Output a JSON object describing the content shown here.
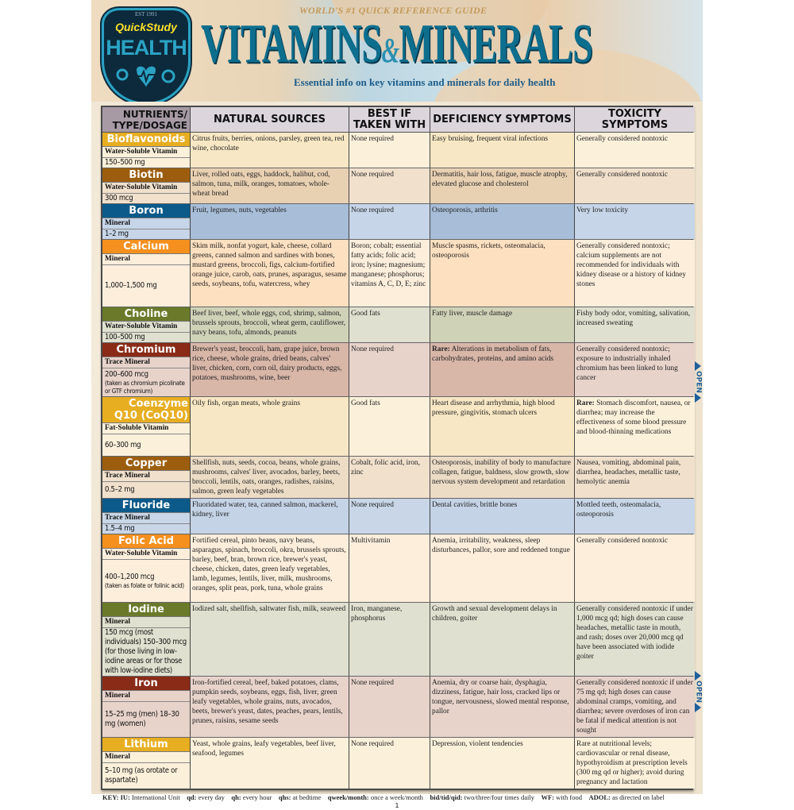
{
  "header": {
    "tagline": "WORLD'S #1 QUICK REFERENCE GUIDE",
    "title_part1": "VITAMINS",
    "title_amp": "&",
    "title_part2": "MINERALS",
    "subtitle": "Essential info on key vitamins and minerals for daily health",
    "logo": {
      "est": "EST 1991",
      "brand": "QuickStudy",
      "category": "HEALTH"
    }
  },
  "table": {
    "columns": [
      "NUTRIENTS/ TYPE/DOSAGE",
      "NATURAL SOURCES",
      "BEST IF TAKEN WITH",
      "DEFICIENCY SYMPTOMS",
      "TOXICITY SYMPTOMS"
    ],
    "rows": [
      {
        "name": "Bioflavonoids",
        "type": "Water-Soluble Vitamin",
        "dosage": "150–500 mg",
        "color": "#e7ae22",
        "tint": "#fbf0da",
        "tint2": "#f8e7c4",
        "sources": "Citrus fruits, berries, onions, parsley, green tea, red wine, chocolate",
        "best": "None required",
        "deficiency": "Easy bruising, frequent viral infections",
        "toxicity": "Generally considered nontoxic"
      },
      {
        "name": "Biotin",
        "type": "Water-Soluble Vitamin",
        "dosage": "300 mcg",
        "color": "#9c5e0e",
        "tint": "#f0e0cc",
        "tint2": "#e8d0b2",
        "sources": "Liver, rolled oats, eggs, haddock, halibut, cod, salmon, tuna, milk, oranges, tomatoes, whole-wheat bread",
        "best": "None required",
        "deficiency": "Dermatitis, hair loss, fatigue, muscle atrophy, elevated glucose and cholesterol",
        "toxicity": "Generally considered nontoxic"
      },
      {
        "name": "Boron",
        "type": "Mineral",
        "dosage": "1–2 mg",
        "color": "#0b5a8a",
        "tint": "#c6d5e8",
        "tint2": "#a7bdd8",
        "sources": "Fruit, legumes, nuts, vegetables",
        "best": "None required",
        "deficiency": "Osteoporosis, arthritis",
        "toxicity": "Very low toxicity"
      },
      {
        "name": "Calcium",
        "type": "Mineral",
        "dosage": "1,000–1,500 mg",
        "color": "#f5901e",
        "tint": "#fdeedc",
        "tint2": "#fde0c0",
        "sources": "Skim milk, nonfat yogurt, kale, cheese, collard greens, canned salmon and sardines with bones, mustard greens, broccoli, figs, calcium-fortified orange juice, carob, oats, prunes, asparagus, sesame seeds, soybeans, tofu, watercress, whey",
        "best": "Boron; cobalt; essential fatty acids; folic acid; iron; lysine; magnesium; manganese; phosphorus; vitamins A, C, D, E; zinc",
        "deficiency": "Muscle spasms, rickets, osteomalacia, osteoporosis",
        "toxicity": "Generally considered nontoxic; calcium supplements are not recommended for individuals with kidney disease or a history of kidney stones"
      },
      {
        "name": "Choline",
        "type": "Water-Soluble Vitamin",
        "dosage": "100–500 mg",
        "color": "#6a7a2a",
        "tint": "#dfe0cf",
        "tint2": "#d0d2b8",
        "sources": "Beef liver, beef, whole eggs, cod, shrimp, salmon, brussels sprouts, broccoli, wheat germ, cauliflower, navy beans, tofu, almonds, peanuts",
        "best": "Good fats",
        "deficiency": "Fatty liver, muscle damage",
        "toxicity": "Fishy body odor, vomiting, salivation, increased sweating"
      },
      {
        "name": "Chromium",
        "type": "Trace Mineral",
        "dosage": "200–600 mcg",
        "dosage_note": "(taken as chromium picolinate or GTF chromium)",
        "color": "#8a2b18",
        "tint": "#e8d3cb",
        "tint2": "#d8b6a8",
        "sources": "Brewer's yeast, broccoli, ham, grape juice, brown rice, cheese, whole grains, dried beans, calves' liver, chicken, corn, corn oil, dairy products, eggs, potatoes, mushrooms, wine, beer",
        "best": "None required",
        "deficiency_prefix": "Rare:",
        "deficiency": "Alterations in metabolism of fats, carbohydrates, proteins, and amino acids",
        "toxicity": "Generally considered nontoxic; exposure to industrially inhaled chromium has been linked to lung cancer"
      },
      {
        "name": "Coenzyme Q10 (CoQ10)",
        "type": "Fat-Soluble Vitamin",
        "dosage": "60–300 mg",
        "color": "#e7ae22",
        "tint": "#fbf0da",
        "tint2": "#f8e7c4",
        "sources": "Oily fish, organ meats, whole grains",
        "best": "Good fats",
        "deficiency": "Heart disease and arrhythmia, high blood pressure, gingivitis, stomach ulcers",
        "toxicity_prefix": "Rare:",
        "toxicity": "Stomach discomfort, nausea, or diarrhea; may increase the effectiveness of some blood pressure and blood-thinning medications"
      },
      {
        "name": "Copper",
        "type": "Trace Mineral",
        "dosage": "0.5–2 mg",
        "color": "#9c5e0e",
        "tint": "#f0e0cc",
        "tint2": "#ecdcc6",
        "sources": "Shellfish, nuts, seeds, cocoa, beans, whole grains, mushrooms, calves' liver, avocados, barley, beets, broccoli, lentils, oats, oranges, radishes, raisins, salmon, green leafy vegetables",
        "best": "Cobalt, folic acid, iron, zinc",
        "deficiency": "Osteoporosis, inability of body to manufacture collagen, fatigue, baldness, slow growth, slow nervous system development and retardation",
        "toxicity": "Nausea, vomiting, abdominal pain, diarrhea, headaches, metallic taste, hemolytic anemia"
      },
      {
        "name": "Fluoride",
        "type": "Trace Mineral",
        "dosage": "1.5–4 mg",
        "color": "#0b5a8a",
        "tint": "#c8d6e8",
        "tint2": "#c4d3e6",
        "sources": "Fluoridated water, tea, canned salmon, mackerel, kidney, liver",
        "best": "None required",
        "deficiency": "Dental cavities, brittle bones",
        "toxicity": "Mottled teeth, osteomalacia, osteoporosis"
      },
      {
        "name": "Folic Acid",
        "type": "Water-Soluble Vitamin",
        "dosage": "400–1,200 mcg",
        "dosage_note": "(taken as folate or folinic acid)",
        "color": "#f5901e",
        "tint": "#fdeedc",
        "tint2": "#fdeedc",
        "sources": "Fortified cereal, pinto beans, navy beans, asparagus, spinach, broccoli, okra, brussels sprouts, barley, beef, bran, brown rice, brewer's yeast, cheese, chicken, dates, green leafy vegetables, lamb, legumes, lentils, liver, milk, mushrooms, oranges, split peas, pork, tuna, whole grains",
        "best": "Multivitamin",
        "deficiency": "Anemia, irritability, weakness, sleep disturbances, pallor, sore and reddened tongue",
        "toxicity": "Generally considered nontoxic"
      },
      {
        "name": "Iodine",
        "type": "Mineral",
        "dosage": "150 mcg (most individuals) 150–300 mcg (for those living in low-iodine areas or for those with low-iodine diets)",
        "color": "#6a7a2a",
        "tint": "#dfe0cf",
        "tint2": "#dfe0cf",
        "sources": "Iodized salt, shellfish, saltwater fish, milk, seaweed",
        "best": "Iron, manganese, phosphorus",
        "deficiency": "Growth and sexual development delays in children, goiter",
        "toxicity": "Generally considered nontoxic if under 1,000 mcg qd; high doses can cause headaches, metallic taste in mouth, and rash; doses over 20,000 mcg qd have been associated with iodide goiter"
      },
      {
        "name": "Iron",
        "type": "Mineral",
        "dosage": "15–25 mg (men) 18–30 mg (women)",
        "color": "#8a2b18",
        "tint": "#e8d3cb",
        "tint2": "#e8d3cb",
        "sources": "Iron-fortified cereal, beef, baked potatoes, clams, pumpkin seeds, soybeans, eggs, fish, liver, green leafy vegetables, whole grains, nuts, avocados, beets, brewer's yeast, dates, peaches, pears, lentils, prunes, raisins, sesame seeds",
        "best": "None required",
        "deficiency": "Anemia, dry or coarse hair, dysphagia, dizziness, fatigue, hair loss, cracked lips or tongue, nervousness, slowed mental response, pallor",
        "toxicity": "Generally considered nontoxic if under 75 mg qd; high doses can cause abdominal cramps, vomiting, and diarrhea; severe overdoses of iron can be fatal if medical attention is not sought"
      },
      {
        "name": "Lithium",
        "type": "Mineral",
        "dosage": "5–10 mg (as orotate or aspartate)",
        "color": "#e7ae22",
        "tint": "#fbf0da",
        "tint2": "#fbf0da",
        "sources": "Yeast, whole grains, leafy vegetables, beef liver, seafood, legumes",
        "best": "None required",
        "deficiency": "Depression, violent tendencies",
        "toxicity": "Rare at nutritional levels; cardiovascular or renal disease, hypothyroidism at prescription levels (300 mg qd or higher); avoid during pregnancy and lactation"
      }
    ]
  },
  "key": {
    "label": "KEY:",
    "items": [
      {
        "abbr": "IU:",
        "meaning": "International Unit"
      },
      {
        "abbr": "qd:",
        "meaning": "every day"
      },
      {
        "abbr": "qh:",
        "meaning": "every hour"
      },
      {
        "abbr": "qhs:",
        "meaning": "at bedtime"
      },
      {
        "abbr": "qweek/month:",
        "meaning": "once a week/month"
      },
      {
        "abbr": "bid/tid/qid:",
        "meaning": "two/three/four times daily"
      },
      {
        "abbr": "WF:",
        "meaning": "with food"
      },
      {
        "abbr": "ADOL:",
        "meaning": "as directed on label"
      }
    ]
  },
  "page_number": "1",
  "open_tab_label": "OPEN"
}
